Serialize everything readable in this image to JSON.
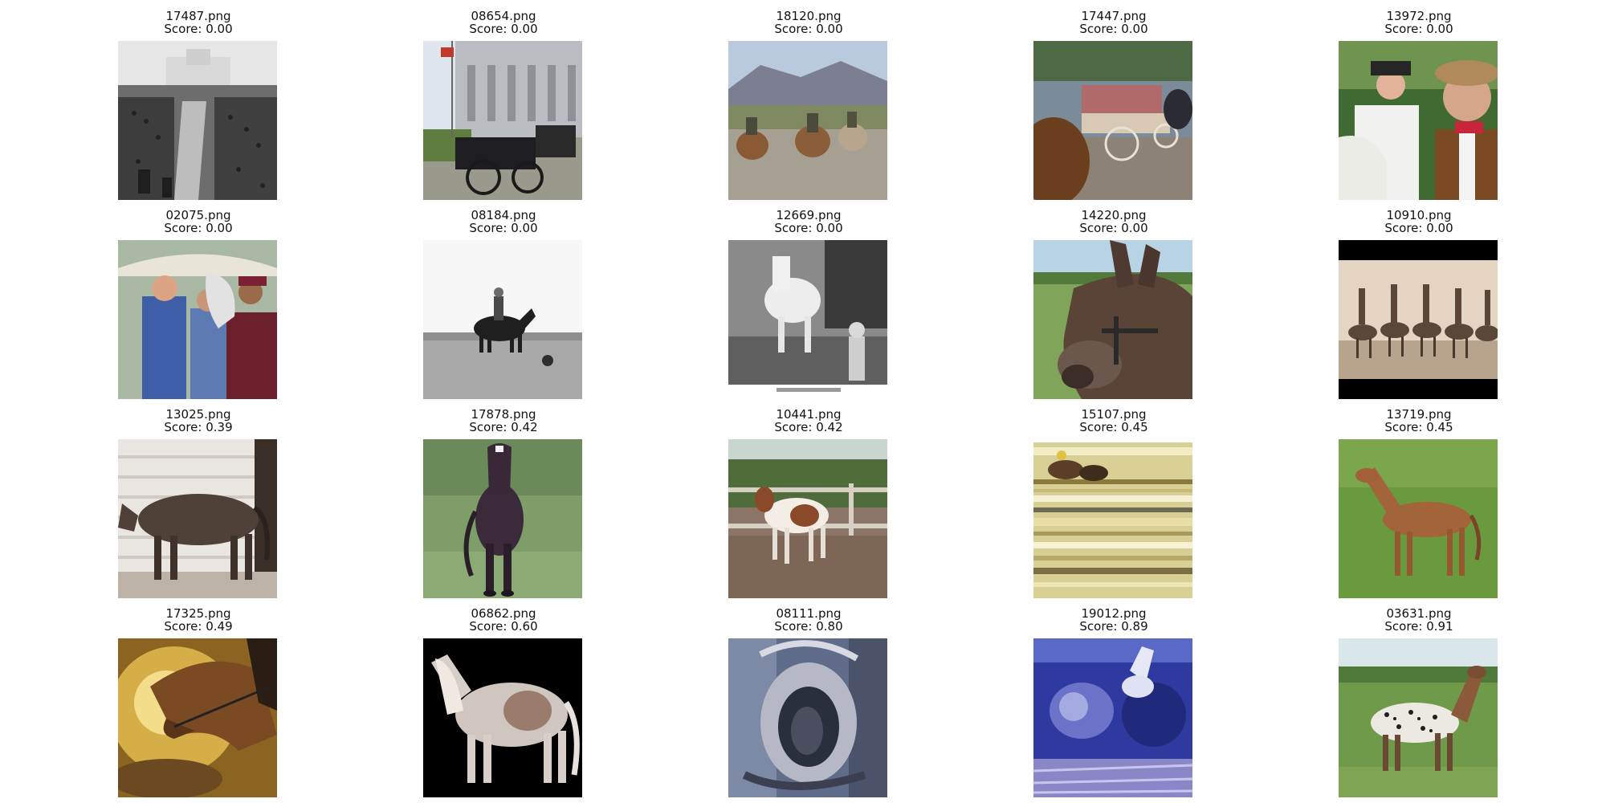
{
  "figure": {
    "items": [
      {
        "file": "17487.png",
        "score": "Score: 0.00",
        "subject": "black-and-white crowd with horse carriages in front of a mission building"
      },
      {
        "file": "08654.png",
        "score": "Score: 0.00",
        "subject": "horse-drawn black carriage in front of a capitol building with flag"
      },
      {
        "file": "18120.png",
        "score": "Score: 0.00",
        "subject": "three riders on horses in a desert with mountains"
      },
      {
        "file": "17447.png",
        "score": "Score: 0.00",
        "subject": "horse-drawn wagon with passengers at a fair"
      },
      {
        "file": "13972.png",
        "score": "Score: 0.00",
        "subject": "bearded men in western hats with a white horse"
      },
      {
        "file": "02075.png",
        "score": "Score: 0.00",
        "subject": "people petting a white horse under an umbrella"
      },
      {
        "file": "08184.png",
        "score": "Score: 0.00",
        "subject": "black-and-white photo of a rider on a horse in a field"
      },
      {
        "file": "12669.png",
        "score": "Score: 0.00",
        "subject": "black-and-white photo of a child with a white horse"
      },
      {
        "file": "14220.png",
        "score": "Score: 0.00",
        "subject": "close-up of a brown mule head with halter"
      },
      {
        "file": "10910.png",
        "score": "Score: 0.00",
        "subject": "sepia photo of performers standing on horses"
      },
      {
        "file": "13025.png",
        "score": "Score: 0.39",
        "subject": "dark brown horse beside a white wooden barn"
      },
      {
        "file": "17878.png",
        "score": "Score: 0.42",
        "subject": "dark bay horse standing on green grass"
      },
      {
        "file": "10441.png",
        "score": "Score: 0.42",
        "subject": "brown and white paint horse in a dirt paddock"
      },
      {
        "file": "15107.png",
        "score": "Score: 0.45",
        "subject": "distorted horse racing image with horizontal streaks"
      },
      {
        "file": "13719.png",
        "score": "Score: 0.45",
        "subject": "chestnut arabian horse standing on grass"
      },
      {
        "file": "17325.png",
        "score": "Score: 0.49",
        "subject": "painted bridled horse head on golden background"
      },
      {
        "file": "06862.png",
        "score": "Score: 0.60",
        "subject": "white and brown pony on black background"
      },
      {
        "file": "08111.png",
        "score": "Score: 0.80",
        "subject": "abstract close-up resembling a horse nostril"
      },
      {
        "file": "19012.png",
        "score": "Score: 0.89",
        "subject": "distorted blue horse image"
      },
      {
        "file": "03631.png",
        "score": "Score: 0.91",
        "subject": "spotted appaloosa horse on green field"
      }
    ]
  }
}
